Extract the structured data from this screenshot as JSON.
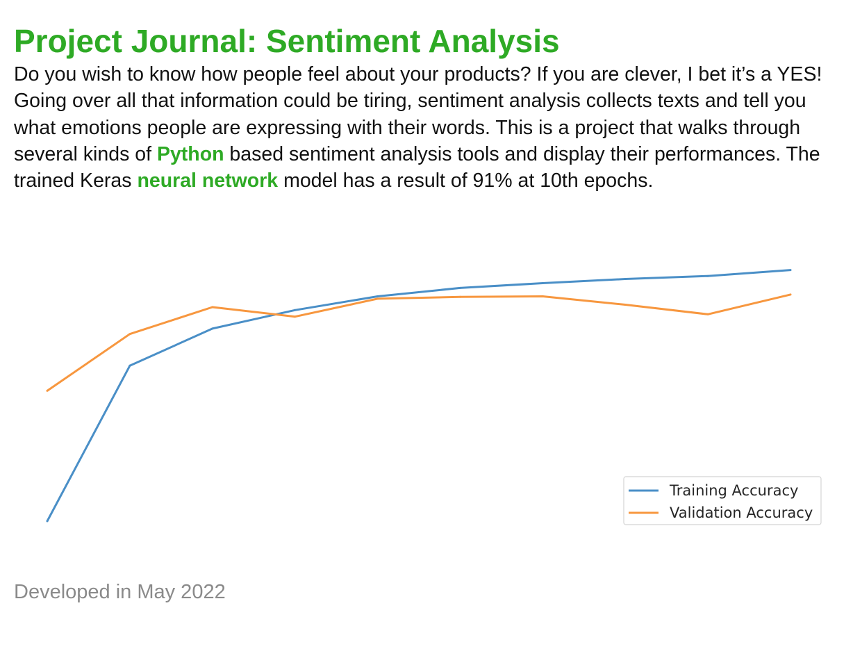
{
  "header": {
    "title": "Project Journal: Sentiment Analysis"
  },
  "intro": {
    "part1": "Do you wish to know how people feel about your products? If you are clever, I bet it’s a YES! Going over all that information could be tiring, sentiment analysis collects texts and tell you what emotions people are expressing with their words. This is a project that walks through several kinds of ",
    "highlight1": "Python",
    "part2": " based sentiment analysis tools and display their performances. The trained Keras ",
    "highlight2": "neural network",
    "part3": " model has a result of 91% at 10th epochs."
  },
  "colors": {
    "accent": "#2eaa25",
    "training": "#4a8fc7",
    "validation": "#f7973f",
    "footer_text": "#8a8a8a"
  },
  "chart_data": {
    "type": "line",
    "title": "",
    "xlabel": "",
    "ylabel": "",
    "x": [
      1,
      2,
      3,
      4,
      5,
      6,
      7,
      8,
      9,
      10
    ],
    "xlim": [
      1,
      10
    ],
    "ylim": [
      0.5,
      0.93
    ],
    "grid": false,
    "axes_visible": false,
    "legend_position": "lower-right",
    "series": [
      {
        "name": "Training Accuracy",
        "color": "#4a8fc7",
        "values": [
          0.5,
          0.76,
          0.822,
          0.853,
          0.876,
          0.89,
          0.898,
          0.905,
          0.91,
          0.92
        ]
      },
      {
        "name": "Validation Accuracy",
        "color": "#f7973f",
        "values": [
          0.718,
          0.813,
          0.858,
          0.842,
          0.872,
          0.875,
          0.876,
          0.862,
          0.846,
          0.879
        ]
      }
    ]
  },
  "footer": {
    "text": "Developed in May 2022"
  }
}
